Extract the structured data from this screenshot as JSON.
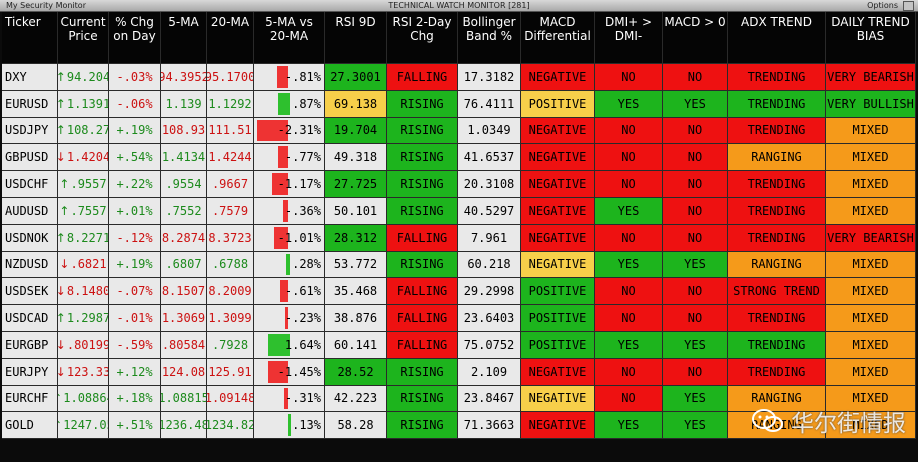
{
  "window": {
    "left_title": "My Security Monitor",
    "center_title": "TECHNICAL WATCH MONITOR [281]",
    "right_title": "Options"
  },
  "headers": [
    "Ticker",
    "Current Price",
    "% Chg on Day",
    "5-MA",
    "20-MA",
    "5-MA vs 20-MA",
    "RSI 9D",
    "RSI 2-Day Chg",
    "Bollinger Band %",
    "MACD Differential",
    "DMI+ > DMI-",
    "MACD > 0",
    "ADX TREND",
    "DAILY TREND BIAS"
  ],
  "rows": [
    {
      "ticker": "DXY",
      "price": "94.204",
      "price_dir": "up",
      "chg": "-.03%",
      "chg_dir": "dn",
      "ma5": "94.3952",
      "ma5_dir": "dn",
      "ma20": "95.1700",
      "ma20_dir": "dn",
      "spread": "-.81%",
      "spread_pct": -0.81,
      "rsi": "27.3001",
      "rsi_color": "green",
      "rsi2": "FALLING",
      "bb": "17.3182",
      "macd": "NEGATIVE",
      "dmi": "NO",
      "macd0": "NO",
      "adx": "TRENDING",
      "adx_color": "red",
      "bias": "VERY BEARISH",
      "bias_color": "red"
    },
    {
      "ticker": "EURUSD",
      "price": "1.1391",
      "price_dir": "up",
      "chg": "-.06%",
      "chg_dir": "dn",
      "ma5": "1.139",
      "ma5_dir": "up",
      "ma20": "1.1292",
      "ma20_dir": "up",
      "spread": ".87%",
      "spread_pct": 0.87,
      "rsi": "69.138",
      "rsi_color": "yellow",
      "rsi2": "RISING",
      "bb": "76.4111",
      "macd": "POSITIVE",
      "dmi": "YES",
      "macd0": "YES",
      "adx": "TRENDING",
      "adx_color": "green",
      "bias": "VERY BULLISH",
      "bias_color": "green"
    },
    {
      "ticker": "USDJPY",
      "price": "108.27",
      "price_dir": "up",
      "chg": "+.19%",
      "chg_dir": "up",
      "ma5": "108.93",
      "ma5_dir": "dn",
      "ma20": "111.51",
      "ma20_dir": "dn",
      "spread": "-2.31%",
      "spread_pct": -2.31,
      "rsi": "19.704",
      "rsi_color": "green",
      "rsi2": "RISING",
      "bb": "1.0349",
      "macd": "NEGATIVE",
      "dmi": "NO",
      "macd0": "NO",
      "adx": "TRENDING",
      "adx_color": "red",
      "bias": "MIXED",
      "bias_color": "orange"
    },
    {
      "ticker": "GBPUSD",
      "price": "1.4204",
      "price_dir": "dn",
      "chg": "+.54%",
      "chg_dir": "up",
      "ma5": "1.4134",
      "ma5_dir": "up",
      "ma20": "1.4244",
      "ma20_dir": "dn",
      "spread": "-.77%",
      "spread_pct": -0.77,
      "rsi": "49.318",
      "rsi_color": "none",
      "rsi2": "RISING",
      "bb": "41.6537",
      "macd": "NEGATIVE",
      "dmi": "NO",
      "macd0": "NO",
      "adx": "RANGING",
      "adx_color": "orange",
      "bias": "MIXED",
      "bias_color": "orange"
    },
    {
      "ticker": "USDCHF",
      "price": ".9557",
      "price_dir": "up",
      "chg": "+.22%",
      "chg_dir": "up",
      "ma5": ".9554",
      "ma5_dir": "up",
      "ma20": ".9667",
      "ma20_dir": "dn",
      "spread": "-1.17%",
      "spread_pct": -1.17,
      "rsi": "27.725",
      "rsi_color": "green",
      "rsi2": "RISING",
      "bb": "20.3108",
      "macd": "NEGATIVE",
      "dmi": "NO",
      "macd0": "NO",
      "adx": "TRENDING",
      "adx_color": "red",
      "bias": "MIXED",
      "bias_color": "orange"
    },
    {
      "ticker": "AUDUSD",
      "price": ".7557",
      "price_dir": "up",
      "chg": "+.01%",
      "chg_dir": "up",
      "ma5": ".7552",
      "ma5_dir": "up",
      "ma20": ".7579",
      "ma20_dir": "dn",
      "spread": "-.36%",
      "spread_pct": -0.36,
      "rsi": "50.101",
      "rsi_color": "none",
      "rsi2": "RISING",
      "bb": "40.5297",
      "macd": "NEGATIVE",
      "dmi": "YES",
      "macd0": "NO",
      "adx": "TRENDING",
      "adx_color": "red",
      "bias": "MIXED",
      "bias_color": "orange"
    },
    {
      "ticker": "USDNOK",
      "price": "8.2271",
      "price_dir": "up",
      "chg": "-.12%",
      "chg_dir": "dn",
      "ma5": "8.2874",
      "ma5_dir": "dn",
      "ma20": "8.3723",
      "ma20_dir": "dn",
      "spread": "-1.01%",
      "spread_pct": -1.01,
      "rsi": "28.312",
      "rsi_color": "green",
      "rsi2": "FALLING",
      "bb": "7.961",
      "macd": "NEGATIVE",
      "dmi": "NO",
      "macd0": "NO",
      "adx": "TRENDING",
      "adx_color": "red",
      "bias": "VERY BEARISH",
      "bias_color": "red"
    },
    {
      "ticker": "NZDUSD",
      "price": ".6821",
      "price_dir": "dn",
      "chg": "+.19%",
      "chg_dir": "up",
      "ma5": ".6807",
      "ma5_dir": "up",
      "ma20": ".6788",
      "ma20_dir": "up",
      "spread": ".28%",
      "spread_pct": 0.28,
      "rsi": "53.772",
      "rsi_color": "none",
      "rsi2": "RISING",
      "bb": "60.218",
      "macd": "NEGATIVE",
      "dmi": "YES",
      "macd0": "YES",
      "adx": "RANGING",
      "adx_color": "orange",
      "bias": "MIXED",
      "bias_color": "orange"
    },
    {
      "ticker": "USDSEK",
      "price": "8.1480",
      "price_dir": "dn",
      "chg": "-.07%",
      "chg_dir": "dn",
      "ma5": "8.1507",
      "ma5_dir": "dn",
      "ma20": "8.2009",
      "ma20_dir": "dn",
      "spread": "-.61%",
      "spread_pct": -0.61,
      "rsi": "35.468",
      "rsi_color": "none",
      "rsi2": "FALLING",
      "bb": "29.2998",
      "macd": "POSITIVE",
      "dmi": "NO",
      "macd0": "NO",
      "adx": "STRONG TREND",
      "adx_color": "red",
      "bias": "MIXED",
      "bias_color": "orange"
    },
    {
      "ticker": "USDCAD",
      "price": "1.2987",
      "price_dir": "up",
      "chg": "-.01%",
      "chg_dir": "dn",
      "ma5": "1.3069",
      "ma5_dir": "dn",
      "ma20": "1.3099",
      "ma20_dir": "dn",
      "spread": "-.23%",
      "spread_pct": -0.23,
      "rsi": "38.876",
      "rsi_color": "none",
      "rsi2": "FALLING",
      "bb": "23.6403",
      "macd": "POSITIVE",
      "dmi": "NO",
      "macd0": "NO",
      "adx": "TRENDING",
      "adx_color": "red",
      "bias": "MIXED",
      "bias_color": "orange"
    },
    {
      "ticker": "EURGBP",
      "price": ".80199",
      "price_dir": "dn",
      "chg": "-.59%",
      "chg_dir": "dn",
      "ma5": ".80584",
      "ma5_dir": "dn",
      "ma20": ".7928",
      "ma20_dir": "up",
      "spread": "1.64%",
      "spread_pct": 1.64,
      "rsi": "60.141",
      "rsi_color": "none",
      "rsi2": "FALLING",
      "bb": "75.0752",
      "macd": "POSITIVE",
      "dmi": "YES",
      "macd0": "YES",
      "adx": "TRENDING",
      "adx_color": "green",
      "bias": "MIXED",
      "bias_color": "orange"
    },
    {
      "ticker": "EURJPY",
      "price": "123.33",
      "price_dir": "dn",
      "chg": "+.12%",
      "chg_dir": "up",
      "ma5": "124.08",
      "ma5_dir": "dn",
      "ma20": "125.91",
      "ma20_dir": "dn",
      "spread": "-1.45%",
      "spread_pct": -1.45,
      "rsi": "28.52",
      "rsi_color": "green",
      "rsi2": "RISING",
      "bb": "2.109",
      "macd": "NEGATIVE",
      "dmi": "NO",
      "macd0": "NO",
      "adx": "TRENDING",
      "adx_color": "red",
      "bias": "MIXED",
      "bias_color": "orange"
    },
    {
      "ticker": "EURCHF",
      "price": "1.08864",
      "price_dir": "up",
      "chg": "+.18%",
      "chg_dir": "up",
      "ma5": "1.08815",
      "ma5_dir": "up",
      "ma20": "1.09148",
      "ma20_dir": "dn",
      "spread": "-.31%",
      "spread_pct": -0.31,
      "rsi": "42.223",
      "rsi_color": "none",
      "rsi2": "RISING",
      "bb": "23.8467",
      "macd": "NEGATIVE",
      "dmi": "NO",
      "macd0": "YES",
      "adx": "RANGING",
      "adx_color": "orange",
      "bias": "MIXED",
      "bias_color": "orange"
    },
    {
      "ticker": "GOLD",
      "price": "1247.05",
      "price_dir": "up",
      "chg": "+.51%",
      "chg_dir": "up",
      "ma5": "1236.48",
      "ma5_dir": "up",
      "ma20": "1234.82",
      "ma20_dir": "up",
      "spread": ".13%",
      "spread_pct": 0.13,
      "rsi": "58.28",
      "rsi_color": "none",
      "rsi2": "RISING",
      "bb": "71.3663",
      "macd": "NEGATIVE",
      "dmi": "YES",
      "macd0": "YES",
      "adx": "RANGING",
      "adx_color": "orange",
      "bias": "MIXED",
      "bias_color": "orange"
    }
  ],
  "watermark": {
    "text": "华尔街情报",
    "icon": "wechat-icon"
  }
}
